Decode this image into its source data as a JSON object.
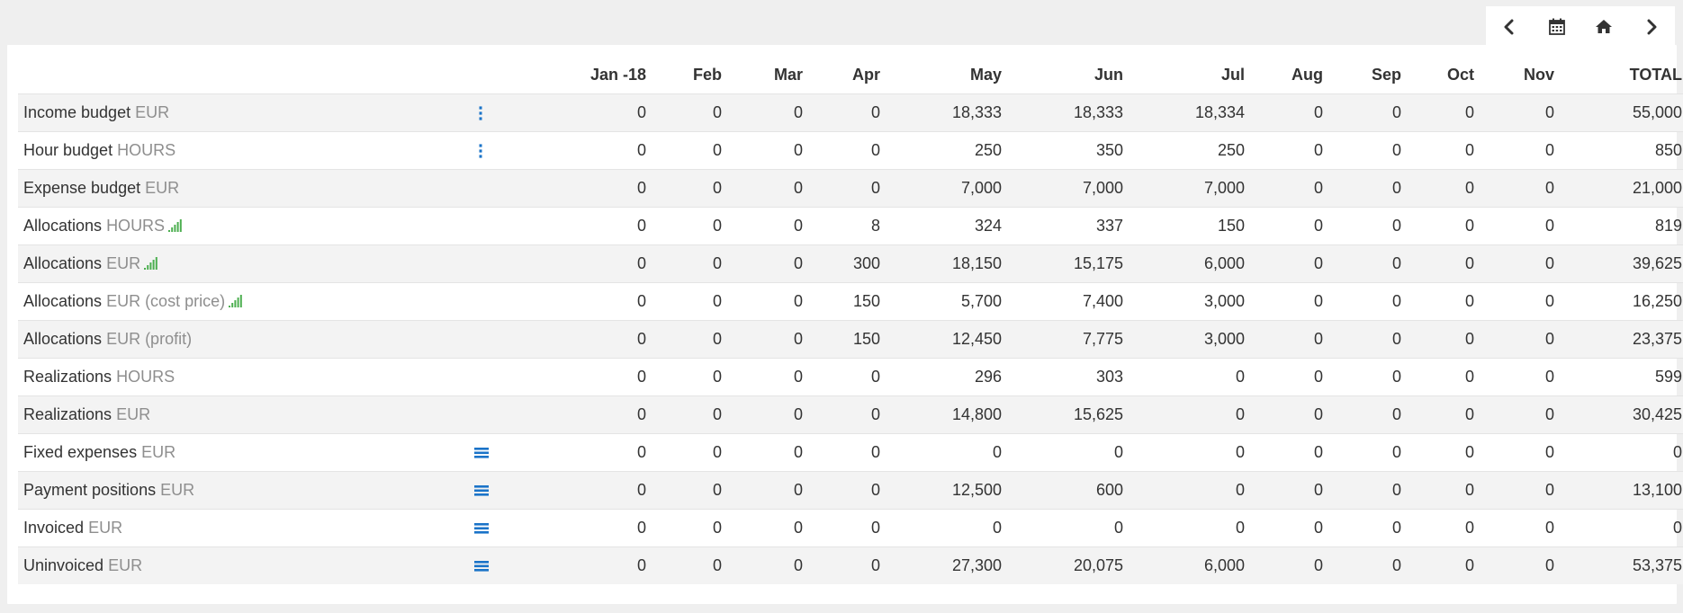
{
  "toolbar": {
    "prev": "chevron-left-icon",
    "calendar": "calendar-icon",
    "home": "home-icon",
    "next": "chevron-right-icon"
  },
  "columns": [
    "Jan -18",
    "Feb",
    "Mar",
    "Apr",
    "May",
    "Jun",
    "Jul",
    "Aug",
    "Sep",
    "Oct",
    "Nov",
    "TOTAL"
  ],
  "colors": {
    "accent": "#1a73c8",
    "signal": "#4caf50",
    "unit": "#8e8e8e",
    "stripe": "#f3f3f3"
  },
  "rows": [
    {
      "label": "Income budget",
      "unit": "EUR",
      "action": "kebab-menu-icon",
      "values": [
        "0",
        "0",
        "0",
        "0",
        "18,333",
        "18,333",
        "18,334",
        "0",
        "0",
        "0",
        "0",
        "55,000"
      ]
    },
    {
      "label": "Hour budget",
      "unit": "HOURS",
      "action": "kebab-menu-icon",
      "values": [
        "0",
        "0",
        "0",
        "0",
        "250",
        "350",
        "250",
        "0",
        "0",
        "0",
        "0",
        "850"
      ]
    },
    {
      "label": "Expense budget",
      "unit": "EUR",
      "values": [
        "0",
        "0",
        "0",
        "0",
        "7,000",
        "7,000",
        "7,000",
        "0",
        "0",
        "0",
        "0",
        "21,000"
      ]
    },
    {
      "label": "Allocations",
      "unit": "HOURS",
      "signal": "signal-bars-icon",
      "values": [
        "0",
        "0",
        "0",
        "8",
        "324",
        "337",
        "150",
        "0",
        "0",
        "0",
        "0",
        "819"
      ]
    },
    {
      "label": "Allocations",
      "unit": "EUR",
      "signal": "signal-bars-icon",
      "values": [
        "0",
        "0",
        "0",
        "300",
        "18,150",
        "15,175",
        "6,000",
        "0",
        "0",
        "0",
        "0",
        "39,625"
      ]
    },
    {
      "label": "Allocations",
      "unit": "EUR (cost price)",
      "signal": "signal-bars-icon",
      "values": [
        "0",
        "0",
        "0",
        "150",
        "5,700",
        "7,400",
        "3,000",
        "0",
        "0",
        "0",
        "0",
        "16,250"
      ]
    },
    {
      "label": "Allocations",
      "unit": "EUR (profit)",
      "values": [
        "0",
        "0",
        "0",
        "150",
        "12,450",
        "7,775",
        "3,000",
        "0",
        "0",
        "0",
        "0",
        "23,375"
      ]
    },
    {
      "label": "Realizations",
      "unit": "HOURS",
      "values": [
        "0",
        "0",
        "0",
        "0",
        "296",
        "303",
        "0",
        "0",
        "0",
        "0",
        "0",
        "599"
      ]
    },
    {
      "label": "Realizations",
      "unit": "EUR",
      "values": [
        "0",
        "0",
        "0",
        "0",
        "14,800",
        "15,625",
        "0",
        "0",
        "0",
        "0",
        "0",
        "30,425"
      ]
    },
    {
      "label": "Fixed expenses",
      "unit": "EUR",
      "action": "list-icon",
      "values": [
        "0",
        "0",
        "0",
        "0",
        "0",
        "0",
        "0",
        "0",
        "0",
        "0",
        "0",
        "0"
      ]
    },
    {
      "label": "Payment positions",
      "unit": "EUR",
      "action": "list-icon",
      "values": [
        "0",
        "0",
        "0",
        "0",
        "12,500",
        "600",
        "0",
        "0",
        "0",
        "0",
        "0",
        "13,100"
      ]
    },
    {
      "label": "Invoiced",
      "unit": "EUR",
      "action": "list-icon",
      "values": [
        "0",
        "0",
        "0",
        "0",
        "0",
        "0",
        "0",
        "0",
        "0",
        "0",
        "0",
        "0"
      ]
    },
    {
      "label": "Uninvoiced",
      "unit": "EUR",
      "action": "list-icon",
      "values": [
        "0",
        "0",
        "0",
        "0",
        "27,300",
        "20,075",
        "6,000",
        "0",
        "0",
        "0",
        "0",
        "53,375"
      ]
    }
  ]
}
